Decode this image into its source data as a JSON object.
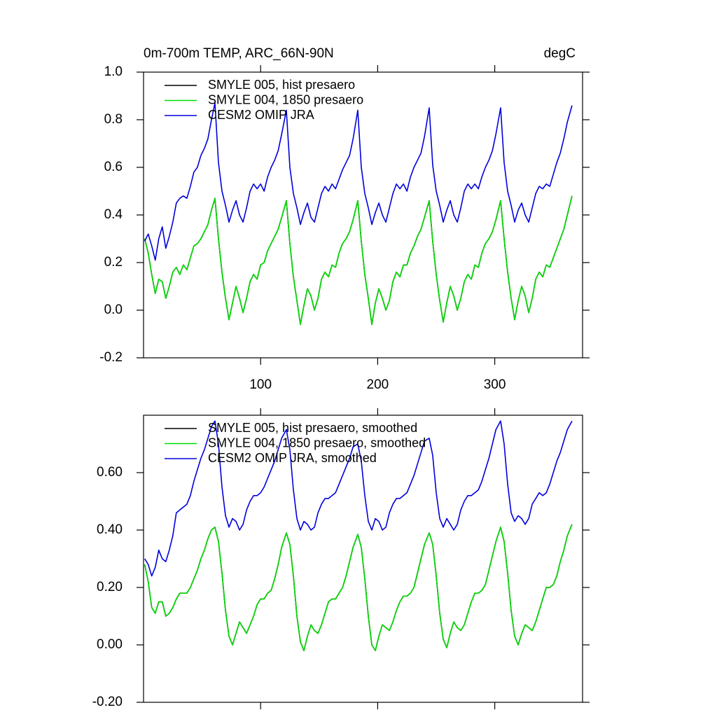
{
  "chart_data": [
    {
      "type": "line",
      "title": "0m-700m TEMP, ARC_66N-90N",
      "units": "degC",
      "legend": "upper-left",
      "x": [
        1,
        4,
        7,
        10,
        13,
        16,
        19,
        22,
        25,
        28,
        31,
        34,
        37,
        40,
        43,
        46,
        49,
        52,
        55,
        58,
        61,
        64,
        67,
        70,
        73,
        76,
        79,
        82,
        85,
        88,
        91,
        94,
        97,
        100,
        103,
        106,
        109,
        112,
        115,
        118,
        122,
        125,
        128,
        131,
        134,
        137,
        140,
        143,
        146,
        149,
        152,
        155,
        158,
        161,
        164,
        167,
        170,
        173,
        176,
        179,
        183,
        186,
        189,
        192,
        195,
        198,
        201,
        204,
        207,
        210,
        213,
        216,
        219,
        222,
        225,
        228,
        231,
        234,
        237,
        240,
        244,
        247,
        250,
        253,
        256,
        259,
        262,
        265,
        268,
        271,
        274,
        277,
        280,
        283,
        286,
        289,
        292,
        295,
        298,
        301,
        305,
        308,
        311,
        314,
        317,
        320,
        323,
        326,
        329,
        332,
        335,
        338,
        341,
        344,
        347,
        350,
        353,
        356,
        359,
        362,
        366
      ],
      "xlim": [
        0,
        375
      ],
      "ylim": [
        -0.2,
        1.0
      ],
      "xticks": [
        100,
        200,
        300
      ],
      "yticks": [
        -0.2,
        {
          "value": 0,
          "label": "0.0"
        },
        0.2,
        0.4,
        0.6,
        0.8,
        {
          "value": 1,
          "label": "1.0"
        }
      ],
      "series": [
        {
          "name": "SMYLE 005, hist presaero",
          "color": "#000000",
          "values": [
            0.3,
            0.24,
            0.15,
            0.07,
            0.13,
            0.12,
            0.05,
            0.1,
            0.16,
            0.18,
            0.15,
            0.19,
            0.17,
            0.22,
            0.27,
            0.28,
            0.3,
            0.33,
            0.36,
            0.42,
            0.47,
            0.3,
            0.16,
            0.05,
            -0.04,
            0.03,
            0.1,
            0.05,
            -0.01,
            0.05,
            0.12,
            0.15,
            0.13,
            0.19,
            0.2,
            0.25,
            0.28,
            0.31,
            0.34,
            0.39,
            0.46,
            0.28,
            0.14,
            0.04,
            -0.06,
            0.02,
            0.09,
            0.06,
            0.0,
            0.05,
            0.13,
            0.16,
            0.14,
            0.19,
            0.18,
            0.24,
            0.28,
            0.3,
            0.33,
            0.38,
            0.46,
            0.29,
            0.15,
            0.05,
            -0.06,
            0.03,
            0.09,
            0.05,
            0.0,
            0.04,
            0.12,
            0.16,
            0.14,
            0.19,
            0.19,
            0.24,
            0.27,
            0.31,
            0.34,
            0.39,
            0.46,
            0.29,
            0.15,
            0.04,
            -0.05,
            0.03,
            0.1,
            0.06,
            0.0,
            0.05,
            0.12,
            0.15,
            0.13,
            0.19,
            0.18,
            0.24,
            0.28,
            0.3,
            0.33,
            0.38,
            0.46,
            0.3,
            0.16,
            0.05,
            -0.04,
            0.04,
            0.1,
            0.06,
            -0.01,
            0.05,
            0.13,
            0.16,
            0.14,
            0.19,
            0.18,
            0.22,
            0.26,
            0.3,
            0.34,
            0.4,
            0.48
          ]
        },
        {
          "name": "SMYLE 004, 1850 presaero",
          "color": "#00dd00",
          "values": [
            0.3,
            0.24,
            0.15,
            0.07,
            0.13,
            0.12,
            0.05,
            0.1,
            0.16,
            0.18,
            0.15,
            0.19,
            0.17,
            0.22,
            0.27,
            0.28,
            0.3,
            0.33,
            0.36,
            0.42,
            0.47,
            0.3,
            0.16,
            0.05,
            -0.04,
            0.03,
            0.1,
            0.05,
            -0.01,
            0.05,
            0.12,
            0.15,
            0.13,
            0.19,
            0.2,
            0.25,
            0.28,
            0.31,
            0.34,
            0.39,
            0.46,
            0.28,
            0.14,
            0.04,
            -0.06,
            0.02,
            0.09,
            0.06,
            0.0,
            0.05,
            0.13,
            0.16,
            0.14,
            0.19,
            0.18,
            0.24,
            0.28,
            0.3,
            0.33,
            0.38,
            0.46,
            0.29,
            0.15,
            0.05,
            -0.06,
            0.03,
            0.09,
            0.05,
            0.0,
            0.04,
            0.12,
            0.16,
            0.14,
            0.19,
            0.19,
            0.24,
            0.27,
            0.31,
            0.34,
            0.39,
            0.46,
            0.29,
            0.15,
            0.04,
            -0.05,
            0.03,
            0.1,
            0.06,
            0.0,
            0.05,
            0.12,
            0.15,
            0.13,
            0.19,
            0.18,
            0.24,
            0.28,
            0.3,
            0.33,
            0.38,
            0.46,
            0.3,
            0.16,
            0.05,
            -0.04,
            0.04,
            0.1,
            0.06,
            -0.01,
            0.05,
            0.13,
            0.16,
            0.14,
            0.19,
            0.18,
            0.22,
            0.26,
            0.3,
            0.34,
            0.4,
            0.48
          ]
        },
        {
          "name": "CESM2 OMIP JRA",
          "color": "#0000dd",
          "values": [
            0.29,
            0.32,
            0.27,
            0.21,
            0.3,
            0.35,
            0.26,
            0.31,
            0.37,
            0.45,
            0.47,
            0.48,
            0.47,
            0.52,
            0.58,
            0.6,
            0.65,
            0.68,
            0.72,
            0.8,
            0.87,
            0.62,
            0.5,
            0.44,
            0.37,
            0.42,
            0.46,
            0.4,
            0.37,
            0.43,
            0.5,
            0.53,
            0.51,
            0.53,
            0.5,
            0.56,
            0.6,
            0.63,
            0.67,
            0.74,
            0.84,
            0.6,
            0.49,
            0.43,
            0.36,
            0.41,
            0.45,
            0.39,
            0.37,
            0.43,
            0.49,
            0.52,
            0.5,
            0.53,
            0.51,
            0.55,
            0.59,
            0.62,
            0.65,
            0.72,
            0.84,
            0.6,
            0.49,
            0.43,
            0.36,
            0.41,
            0.45,
            0.4,
            0.37,
            0.43,
            0.49,
            0.53,
            0.51,
            0.53,
            0.5,
            0.56,
            0.6,
            0.63,
            0.66,
            0.73,
            0.85,
            0.61,
            0.5,
            0.44,
            0.37,
            0.42,
            0.46,
            0.4,
            0.37,
            0.43,
            0.5,
            0.53,
            0.51,
            0.53,
            0.51,
            0.56,
            0.6,
            0.63,
            0.67,
            0.74,
            0.85,
            0.62,
            0.5,
            0.44,
            0.37,
            0.42,
            0.45,
            0.4,
            0.37,
            0.43,
            0.49,
            0.52,
            0.51,
            0.53,
            0.52,
            0.57,
            0.62,
            0.66,
            0.72,
            0.79,
            0.86
          ]
        }
      ]
    },
    {
      "type": "line",
      "legend": "upper-left",
      "x": [
        1,
        4,
        7,
        10,
        13,
        16,
        19,
        22,
        25,
        28,
        31,
        34,
        37,
        40,
        43,
        46,
        49,
        52,
        55,
        58,
        61,
        64,
        67,
        70,
        73,
        76,
        79,
        82,
        85,
        88,
        91,
        94,
        97,
        100,
        103,
        106,
        109,
        112,
        115,
        118,
        122,
        125,
        128,
        131,
        134,
        137,
        140,
        143,
        146,
        149,
        152,
        155,
        158,
        161,
        164,
        167,
        170,
        173,
        176,
        179,
        183,
        186,
        189,
        192,
        195,
        198,
        201,
        204,
        207,
        210,
        213,
        216,
        219,
        222,
        225,
        228,
        231,
        234,
        237,
        240,
        244,
        247,
        250,
        253,
        256,
        259,
        262,
        265,
        268,
        271,
        274,
        277,
        280,
        283,
        286,
        289,
        292,
        295,
        298,
        301,
        305,
        308,
        311,
        314,
        317,
        320,
        323,
        326,
        329,
        332,
        335,
        338,
        341,
        344,
        347,
        350,
        353,
        356,
        359,
        362,
        366
      ],
      "xlim": [
        0,
        375
      ],
      "ylim": [
        -0.2,
        0.8
      ],
      "xticks": [
        100,
        200,
        300
      ],
      "yticks": [
        {
          "value": -0.2,
          "label": "-0.20"
        },
        {
          "value": 0,
          "label": "0.00"
        },
        {
          "value": 0.2,
          "label": "0.20"
        },
        {
          "value": 0.4,
          "label": "0.40"
        },
        {
          "value": 0.6,
          "label": "0.60"
        }
      ],
      "series": [
        {
          "name": "SMYLE 005, hist presaero, smoothed",
          "color": "#000000",
          "values": [
            0.28,
            0.22,
            0.13,
            0.11,
            0.15,
            0.15,
            0.1,
            0.11,
            0.13,
            0.16,
            0.18,
            0.18,
            0.18,
            0.2,
            0.23,
            0.26,
            0.3,
            0.33,
            0.37,
            0.4,
            0.41,
            0.36,
            0.25,
            0.12,
            0.03,
            0.0,
            0.04,
            0.08,
            0.06,
            0.04,
            0.07,
            0.1,
            0.14,
            0.16,
            0.16,
            0.18,
            0.19,
            0.23,
            0.28,
            0.34,
            0.39,
            0.35,
            0.24,
            0.1,
            0.01,
            -0.02,
            0.03,
            0.07,
            0.05,
            0.04,
            0.07,
            0.11,
            0.15,
            0.16,
            0.16,
            0.18,
            0.2,
            0.24,
            0.29,
            0.34,
            0.385,
            0.34,
            0.23,
            0.1,
            0.0,
            -0.02,
            0.03,
            0.07,
            0.06,
            0.05,
            0.08,
            0.12,
            0.15,
            0.17,
            0.17,
            0.18,
            0.2,
            0.25,
            0.3,
            0.35,
            0.39,
            0.35,
            0.24,
            0.11,
            0.02,
            -0.01,
            0.04,
            0.08,
            0.06,
            0.05,
            0.07,
            0.11,
            0.15,
            0.18,
            0.18,
            0.19,
            0.21,
            0.26,
            0.31,
            0.36,
            0.41,
            0.36,
            0.25,
            0.12,
            0.03,
            0.0,
            0.04,
            0.07,
            0.06,
            0.05,
            0.08,
            0.12,
            0.16,
            0.2,
            0.2,
            0.21,
            0.24,
            0.29,
            0.33,
            0.38,
            0.42
          ]
        },
        {
          "name": "SMYLE 004, 1850 presaero, smoothed",
          "color": "#00dd00",
          "values": [
            0.28,
            0.22,
            0.13,
            0.11,
            0.15,
            0.15,
            0.1,
            0.11,
            0.13,
            0.16,
            0.18,
            0.18,
            0.18,
            0.2,
            0.23,
            0.26,
            0.3,
            0.33,
            0.37,
            0.4,
            0.41,
            0.36,
            0.25,
            0.12,
            0.03,
            0.0,
            0.04,
            0.08,
            0.06,
            0.04,
            0.07,
            0.1,
            0.14,
            0.16,
            0.16,
            0.18,
            0.19,
            0.23,
            0.28,
            0.34,
            0.39,
            0.35,
            0.24,
            0.1,
            0.01,
            -0.02,
            0.03,
            0.07,
            0.05,
            0.04,
            0.07,
            0.11,
            0.15,
            0.16,
            0.16,
            0.18,
            0.2,
            0.24,
            0.29,
            0.34,
            0.385,
            0.34,
            0.23,
            0.1,
            0.0,
            -0.02,
            0.03,
            0.07,
            0.06,
            0.05,
            0.08,
            0.12,
            0.15,
            0.17,
            0.17,
            0.18,
            0.2,
            0.25,
            0.3,
            0.35,
            0.39,
            0.35,
            0.24,
            0.11,
            0.02,
            -0.01,
            0.04,
            0.08,
            0.06,
            0.05,
            0.07,
            0.11,
            0.15,
            0.18,
            0.18,
            0.19,
            0.21,
            0.26,
            0.31,
            0.36,
            0.41,
            0.36,
            0.25,
            0.12,
            0.03,
            0.0,
            0.04,
            0.07,
            0.06,
            0.05,
            0.08,
            0.12,
            0.16,
            0.2,
            0.2,
            0.21,
            0.24,
            0.29,
            0.33,
            0.38,
            0.42
          ]
        },
        {
          "name": "CESM2 OMIP JRA, smoothed",
          "color": "#0000dd",
          "values": [
            0.3,
            0.28,
            0.24,
            0.27,
            0.33,
            0.3,
            0.29,
            0.33,
            0.38,
            0.46,
            0.47,
            0.48,
            0.49,
            0.52,
            0.57,
            0.61,
            0.65,
            0.68,
            0.72,
            0.76,
            0.78,
            0.7,
            0.55,
            0.45,
            0.41,
            0.44,
            0.43,
            0.4,
            0.42,
            0.47,
            0.5,
            0.52,
            0.52,
            0.53,
            0.55,
            0.58,
            0.61,
            0.64,
            0.68,
            0.72,
            0.75,
            0.68,
            0.54,
            0.44,
            0.4,
            0.43,
            0.42,
            0.4,
            0.41,
            0.46,
            0.49,
            0.51,
            0.51,
            0.52,
            0.53,
            0.56,
            0.59,
            0.62,
            0.65,
            0.69,
            0.7,
            0.64,
            0.52,
            0.43,
            0.4,
            0.44,
            0.43,
            0.4,
            0.41,
            0.46,
            0.49,
            0.51,
            0.51,
            0.52,
            0.53,
            0.56,
            0.59,
            0.63,
            0.67,
            0.71,
            0.72,
            0.66,
            0.53,
            0.44,
            0.41,
            0.44,
            0.42,
            0.4,
            0.42,
            0.47,
            0.5,
            0.52,
            0.52,
            0.53,
            0.54,
            0.57,
            0.61,
            0.65,
            0.7,
            0.75,
            0.78,
            0.7,
            0.56,
            0.46,
            0.43,
            0.45,
            0.44,
            0.42,
            0.44,
            0.49,
            0.51,
            0.53,
            0.52,
            0.53,
            0.56,
            0.6,
            0.64,
            0.67,
            0.71,
            0.75,
            0.78
          ]
        }
      ]
    }
  ]
}
